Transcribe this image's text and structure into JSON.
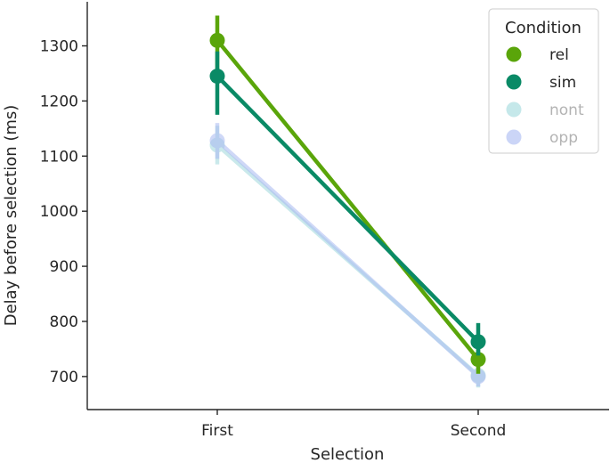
{
  "chart_data": {
    "type": "line",
    "xlabel": "Selection",
    "ylabel": "Delay before selection (ms)",
    "categories": [
      "First",
      "Second"
    ],
    "ylim": [
      640,
      1380
    ],
    "yticks": [
      700,
      800,
      900,
      1000,
      1100,
      1200,
      1300
    ],
    "grid": false,
    "legend": {
      "title": "Condition",
      "placement": "top-right"
    },
    "series": [
      {
        "name": "rel",
        "color": "#5aa50a",
        "faded": false,
        "values": [
          1310,
          731
        ],
        "error_low": [
          1245,
          705
        ],
        "error_high": [
          1355,
          758
        ]
      },
      {
        "name": "sim",
        "color": "#0a8a66",
        "faded": false,
        "values": [
          1245,
          763
        ],
        "error_low": [
          1175,
          738
        ],
        "error_high": [
          1290,
          797
        ]
      },
      {
        "name": "nont",
        "color": "#9fd8dc",
        "faded": true,
        "values": [
          1120,
          702
        ],
        "error_low": [
          1085,
          680
        ],
        "error_high": [
          1155,
          722
        ]
      },
      {
        "name": "opp",
        "color": "#a9b9f2",
        "faded": true,
        "values": [
          1128,
          700
        ],
        "error_low": [
          1095,
          682
        ],
        "error_high": [
          1160,
          719
        ]
      }
    ]
  }
}
